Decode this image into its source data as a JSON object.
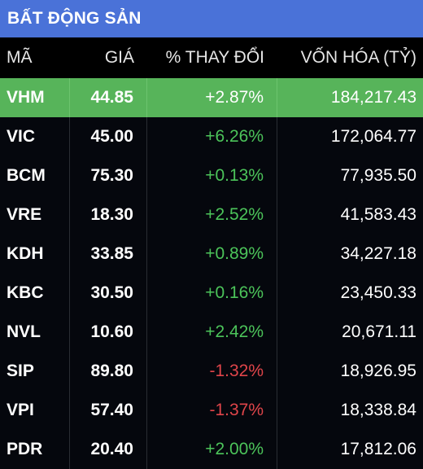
{
  "title": "BẤT ĐỘNG SẢN",
  "columns": {
    "symbol": "MÃ",
    "price": "GIÁ",
    "change": "% THAY ĐỔI",
    "market_cap": "VỐN HÓA (TỶ)"
  },
  "colors": {
    "title_bar": "#4a72d8",
    "highlight_row": "#57b45a",
    "up": "#4cc45a",
    "down": "#e0454a"
  },
  "rows": [
    {
      "symbol": "VHM",
      "price": "44.85",
      "change": "+2.87%",
      "market_cap": "184,217.43",
      "direction": "up",
      "selected": true
    },
    {
      "symbol": "VIC",
      "price": "45.00",
      "change": "+6.26%",
      "market_cap": "172,064.77",
      "direction": "up",
      "selected": false
    },
    {
      "symbol": "BCM",
      "price": "75.30",
      "change": "+0.13%",
      "market_cap": "77,935.50",
      "direction": "up",
      "selected": false
    },
    {
      "symbol": "VRE",
      "price": "18.30",
      "change": "+2.52%",
      "market_cap": "41,583.43",
      "direction": "up",
      "selected": false
    },
    {
      "symbol": "KDH",
      "price": "33.85",
      "change": "+0.89%",
      "market_cap": "34,227.18",
      "direction": "up",
      "selected": false
    },
    {
      "symbol": "KBC",
      "price": "30.50",
      "change": "+0.16%",
      "market_cap": "23,450.33",
      "direction": "up",
      "selected": false
    },
    {
      "symbol": "NVL",
      "price": "10.60",
      "change": "+2.42%",
      "market_cap": "20,671.11",
      "direction": "up",
      "selected": false
    },
    {
      "symbol": "SIP",
      "price": "89.80",
      "change": "-1.32%",
      "market_cap": "18,926.95",
      "direction": "down",
      "selected": false
    },
    {
      "symbol": "VPI",
      "price": "57.40",
      "change": "-1.37%",
      "market_cap": "18,338.84",
      "direction": "down",
      "selected": false
    },
    {
      "symbol": "PDR",
      "price": "20.40",
      "change": "+2.00%",
      "market_cap": "17,812.06",
      "direction": "up",
      "selected": false
    }
  ]
}
